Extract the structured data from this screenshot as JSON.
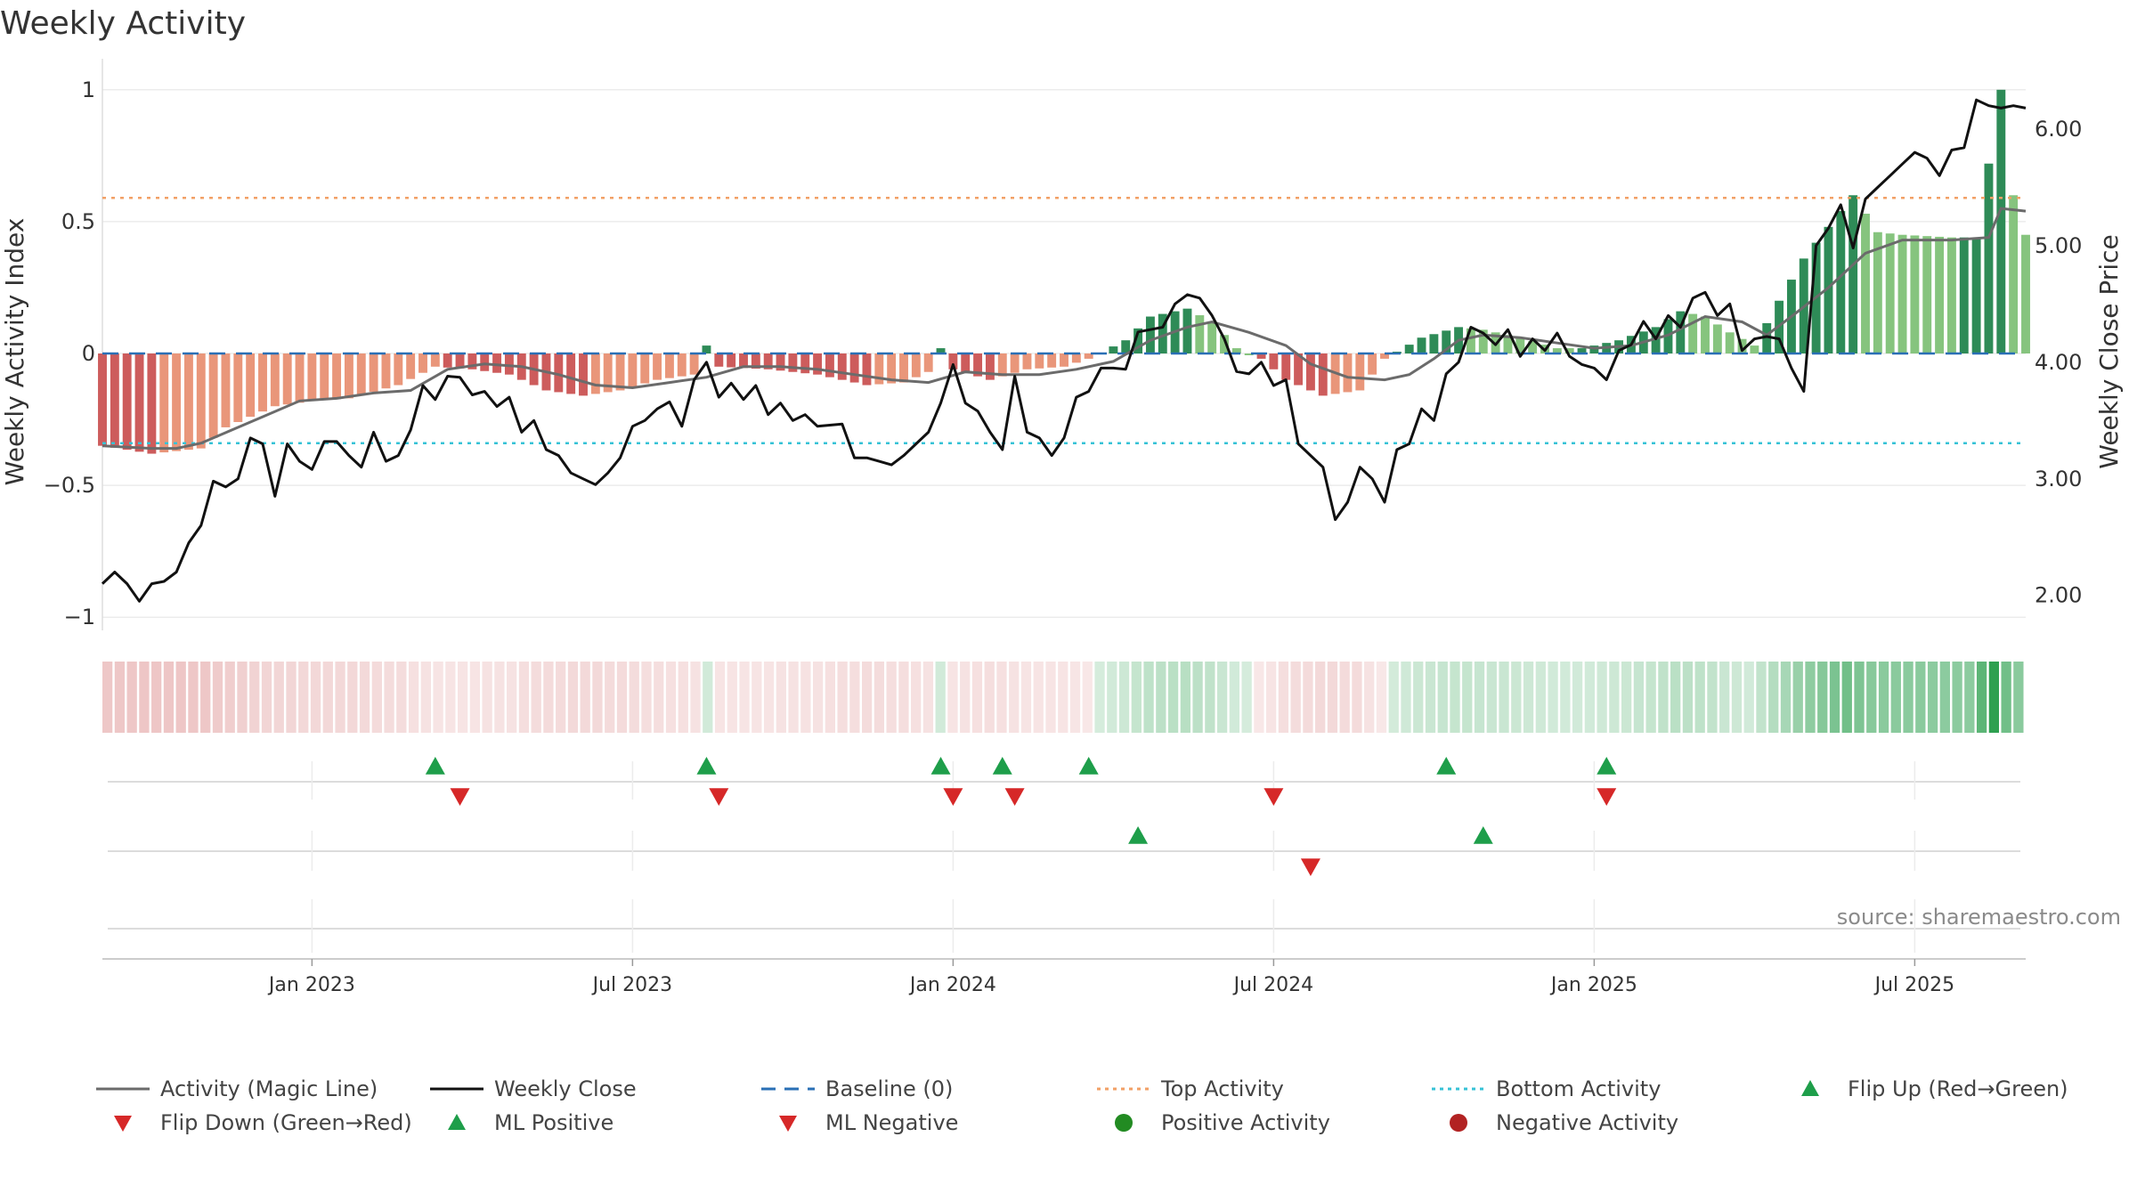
{
  "title": "Weekly Activity",
  "source_note": "source: sharemaestro.com",
  "colors": {
    "magic_line": "#6b6b6b",
    "close": "#111111",
    "baseline": "#2a6fb5",
    "top_activity": "#f2a066",
    "bottom_activity": "#36c2d6",
    "green_dark": "#2e8b57",
    "green_light": "#86c47e",
    "red_dark": "#cd5c5c",
    "red_light": "#e9967a",
    "flip_up": "#1e9e4a",
    "flip_down": "#d62828",
    "positive_dot": "#228b22",
    "negative_dot": "#b22222"
  },
  "chart_data": {
    "type": "bar+line",
    "title": "Weekly Activity",
    "ylabel_left": "Weekly Activity Index",
    "ylabel_right": "Weekly Close Price",
    "ylim_left": [
      -1.05,
      1.05
    ],
    "ylim_right": [
      1.7,
      6.45
    ],
    "left_ticks": [
      {
        "v": 1,
        "label": "1"
      },
      {
        "v": 0.5,
        "label": "0.5"
      },
      {
        "v": 0,
        "label": "0"
      },
      {
        "v": -0.5,
        "label": "−0.5"
      },
      {
        "v": -1,
        "label": "−1"
      }
    ],
    "right_ticks": [
      {
        "v": 6,
        "label": "6.00"
      },
      {
        "v": 5,
        "label": "5.00"
      },
      {
        "v": 4,
        "label": "4.00"
      },
      {
        "v": 3,
        "label": "3.00"
      },
      {
        "v": 2,
        "label": "2.00"
      }
    ],
    "x_range_weeks": [
      0,
      156
    ],
    "x_ticks": [
      {
        "week": 17,
        "label": "Jan 2023"
      },
      {
        "week": 43,
        "label": "Jul 2023"
      },
      {
        "week": 69,
        "label": "Jan 2024"
      },
      {
        "week": 95,
        "label": "Jul 2024"
      },
      {
        "week": 121,
        "label": "Jan 2025"
      },
      {
        "week": 147,
        "label": "Jul 2025"
      }
    ],
    "top_activity": 0.59,
    "bottom_activity": -0.34,
    "baseline": 0,
    "keypoints": {
      "activity": [
        [
          0,
          -0.35
        ],
        [
          4,
          -0.38
        ],
        [
          8,
          -0.36
        ],
        [
          10,
          -0.28
        ],
        [
          14,
          -0.2
        ],
        [
          17,
          -0.18
        ],
        [
          20,
          -0.17
        ],
        [
          24,
          -0.12
        ],
        [
          27,
          -0.05
        ],
        [
          30,
          -0.06
        ],
        [
          33,
          -0.08
        ],
        [
          36,
          -0.14
        ],
        [
          39,
          -0.16
        ],
        [
          42,
          -0.14
        ],
        [
          45,
          -0.1
        ],
        [
          48,
          -0.08
        ],
        [
          49,
          0.03
        ],
        [
          50,
          -0.05
        ],
        [
          54,
          -0.06
        ],
        [
          58,
          -0.08
        ],
        [
          62,
          -0.12
        ],
        [
          65,
          -0.11
        ],
        [
          67,
          -0.07
        ],
        [
          68,
          0.02
        ],
        [
          69,
          -0.06
        ],
        [
          72,
          -0.1
        ],
        [
          75,
          -0.06
        ],
        [
          78,
          -0.05
        ],
        [
          80,
          -0.02
        ],
        [
          83,
          0.05
        ],
        [
          85,
          0.14
        ],
        [
          88,
          0.17
        ],
        [
          90,
          0.12
        ],
        [
          92,
          0.02
        ],
        [
          94,
          -0.02
        ],
        [
          96,
          -0.1
        ],
        [
          99,
          -0.16
        ],
        [
          102,
          -0.14
        ],
        [
          104,
          -0.02
        ],
        [
          107,
          0.06
        ],
        [
          110,
          0.1
        ],
        [
          112,
          0.09
        ],
        [
          115,
          0.06
        ],
        [
          118,
          0.02
        ],
        [
          120,
          0.02
        ],
        [
          123,
          0.05
        ],
        [
          126,
          0.1
        ],
        [
          128,
          0.16
        ],
        [
          130,
          0.14
        ],
        [
          132,
          0.08
        ],
        [
          134,
          0.03
        ],
        [
          136,
          0.2
        ],
        [
          138,
          0.36
        ],
        [
          140,
          0.48
        ],
        [
          142,
          0.6
        ],
        [
          144,
          0.46
        ],
        [
          146,
          0.45
        ],
        [
          150,
          0.44
        ],
        [
          152,
          0.44
        ],
        [
          154,
          1.0
        ],
        [
          155,
          0.6
        ],
        [
          156,
          0.45
        ]
      ],
      "magic_line": [
        [
          0,
          -0.35
        ],
        [
          4,
          -0.36
        ],
        [
          6,
          -0.36
        ],
        [
          8,
          -0.34
        ],
        [
          10,
          -0.3
        ],
        [
          13,
          -0.24
        ],
        [
          16,
          -0.18
        ],
        [
          19,
          -0.17
        ],
        [
          22,
          -0.15
        ],
        [
          25,
          -0.14
        ],
        [
          28,
          -0.06
        ],
        [
          31,
          -0.04
        ],
        [
          34,
          -0.05
        ],
        [
          37,
          -0.08
        ],
        [
          40,
          -0.12
        ],
        [
          43,
          -0.13
        ],
        [
          46,
          -0.11
        ],
        [
          49,
          -0.09
        ],
        [
          52,
          -0.05
        ],
        [
          55,
          -0.05
        ],
        [
          58,
          -0.06
        ],
        [
          61,
          -0.08
        ],
        [
          64,
          -0.1
        ],
        [
          67,
          -0.11
        ],
        [
          70,
          -0.07
        ],
        [
          73,
          -0.08
        ],
        [
          76,
          -0.08
        ],
        [
          79,
          -0.06
        ],
        [
          82,
          -0.03
        ],
        [
          85,
          0.05
        ],
        [
          88,
          0.1
        ],
        [
          90,
          0.12
        ],
        [
          93,
          0.08
        ],
        [
          96,
          0.03
        ],
        [
          98,
          -0.04
        ],
        [
          101,
          -0.09
        ],
        [
          104,
          -0.1
        ],
        [
          106,
          -0.08
        ],
        [
          108,
          -0.02
        ],
        [
          110,
          0.05
        ],
        [
          112,
          0.07
        ],
        [
          115,
          0.06
        ],
        [
          118,
          0.04
        ],
        [
          121,
          0.02
        ],
        [
          124,
          0.03
        ],
        [
          127,
          0.07
        ],
        [
          130,
          0.14
        ],
        [
          133,
          0.12
        ],
        [
          135,
          0.07
        ],
        [
          137,
          0.14
        ],
        [
          140,
          0.25
        ],
        [
          143,
          0.38
        ],
        [
          146,
          0.43
        ],
        [
          150,
          0.43
        ],
        [
          153,
          0.44
        ],
        [
          154,
          0.55
        ],
        [
          156,
          0.54
        ]
      ],
      "close": [
        [
          0,
          2.1
        ],
        [
          1,
          2.2
        ],
        [
          2,
          2.1
        ],
        [
          3,
          1.95
        ],
        [
          4,
          2.1
        ],
        [
          5,
          2.12
        ],
        [
          6,
          2.2
        ],
        [
          7,
          2.45
        ],
        [
          8,
          2.6
        ],
        [
          9,
          2.98
        ],
        [
          10,
          2.93
        ],
        [
          11,
          3.0
        ],
        [
          12,
          3.35
        ],
        [
          13,
          3.3
        ],
        [
          14,
          2.85
        ],
        [
          15,
          3.3
        ],
        [
          16,
          3.15
        ],
        [
          17,
          3.08
        ],
        [
          18,
          3.32
        ],
        [
          19,
          3.32
        ],
        [
          20,
          3.2
        ],
        [
          21,
          3.1
        ],
        [
          22,
          3.4
        ],
        [
          23,
          3.15
        ],
        [
          24,
          3.2
        ],
        [
          25,
          3.42
        ],
        [
          26,
          3.8
        ],
        [
          27,
          3.68
        ],
        [
          28,
          3.88
        ],
        [
          29,
          3.87
        ],
        [
          30,
          3.72
        ],
        [
          31,
          3.75
        ],
        [
          32,
          3.62
        ],
        [
          33,
          3.7
        ],
        [
          34,
          3.4
        ],
        [
          35,
          3.5
        ],
        [
          36,
          3.25
        ],
        [
          37,
          3.2
        ],
        [
          38,
          3.05
        ],
        [
          39,
          3.0
        ],
        [
          40,
          2.95
        ],
        [
          41,
          3.05
        ],
        [
          42,
          3.18
        ],
        [
          43,
          3.45
        ],
        [
          44,
          3.5
        ],
        [
          45,
          3.6
        ],
        [
          46,
          3.66
        ],
        [
          47,
          3.45
        ],
        [
          48,
          3.85
        ],
        [
          49,
          4.0
        ],
        [
          50,
          3.7
        ],
        [
          51,
          3.82
        ],
        [
          52,
          3.68
        ],
        [
          53,
          3.8
        ],
        [
          54,
          3.55
        ],
        [
          55,
          3.65
        ],
        [
          56,
          3.5
        ],
        [
          57,
          3.55
        ],
        [
          58,
          3.45
        ],
        [
          59,
          3.46
        ],
        [
          60,
          3.47
        ],
        [
          61,
          3.18
        ],
        [
          62,
          3.18
        ],
        [
          63,
          3.15
        ],
        [
          64,
          3.12
        ],
        [
          65,
          3.2
        ],
        [
          66,
          3.3
        ],
        [
          67,
          3.4
        ],
        [
          68,
          3.65
        ],
        [
          69,
          3.98
        ],
        [
          70,
          3.65
        ],
        [
          71,
          3.58
        ],
        [
          72,
          3.4
        ],
        [
          73,
          3.25
        ],
        [
          74,
          3.88
        ],
        [
          75,
          3.4
        ],
        [
          76,
          3.35
        ],
        [
          77,
          3.2
        ],
        [
          78,
          3.35
        ],
        [
          79,
          3.7
        ],
        [
          80,
          3.75
        ],
        [
          81,
          3.95
        ],
        [
          82,
          3.95
        ],
        [
          83,
          3.94
        ],
        [
          84,
          4.26
        ],
        [
          85,
          4.28
        ],
        [
          86,
          4.3
        ],
        [
          87,
          4.5
        ],
        [
          88,
          4.58
        ],
        [
          89,
          4.55
        ],
        [
          90,
          4.4
        ],
        [
          91,
          4.2
        ],
        [
          92,
          3.92
        ],
        [
          93,
          3.9
        ],
        [
          94,
          4.0
        ],
        [
          95,
          3.8
        ],
        [
          96,
          3.85
        ],
        [
          97,
          3.3
        ],
        [
          98,
          3.2
        ],
        [
          99,
          3.1
        ],
        [
          100,
          2.65
        ],
        [
          101,
          2.8
        ],
        [
          102,
          3.1
        ],
        [
          103,
          3.0
        ],
        [
          104,
          2.8
        ],
        [
          105,
          3.25
        ],
        [
          106,
          3.3
        ],
        [
          107,
          3.6
        ],
        [
          108,
          3.5
        ],
        [
          109,
          3.9
        ],
        [
          110,
          4.0
        ],
        [
          111,
          4.3
        ],
        [
          112,
          4.25
        ],
        [
          113,
          4.15
        ],
        [
          114,
          4.28
        ],
        [
          115,
          4.05
        ],
        [
          116,
          4.2
        ],
        [
          117,
          4.1
        ],
        [
          118,
          4.25
        ],
        [
          119,
          4.05
        ],
        [
          120,
          3.98
        ],
        [
          121,
          3.95
        ],
        [
          122,
          3.85
        ],
        [
          123,
          4.1
        ],
        [
          124,
          4.15
        ],
        [
          125,
          4.35
        ],
        [
          126,
          4.2
        ],
        [
          127,
          4.4
        ],
        [
          128,
          4.3
        ],
        [
          129,
          4.55
        ],
        [
          130,
          4.6
        ],
        [
          131,
          4.4
        ],
        [
          132,
          4.5
        ],
        [
          133,
          4.1
        ],
        [
          134,
          4.2
        ],
        [
          135,
          4.22
        ],
        [
          136,
          4.2
        ],
        [
          137,
          3.95
        ],
        [
          138,
          3.75
        ],
        [
          139,
          5.0
        ],
        [
          140,
          5.15
        ],
        [
          141,
          5.35
        ],
        [
          142,
          4.98
        ],
        [
          143,
          5.4
        ],
        [
          144,
          5.5
        ],
        [
          145,
          5.6
        ],
        [
          146,
          5.7
        ],
        [
          147,
          5.8
        ],
        [
          148,
          5.75
        ],
        [
          149,
          5.6
        ],
        [
          150,
          5.82
        ],
        [
          151,
          5.84
        ],
        [
          152,
          6.25
        ],
        [
          153,
          6.2
        ],
        [
          154,
          6.18
        ],
        [
          155,
          6.2
        ],
        [
          156,
          6.18
        ]
      ]
    },
    "flip_up_weeks": [
      27,
      49,
      68,
      73,
      80,
      109,
      122
    ],
    "flip_down_weeks": [
      29,
      50,
      69,
      74,
      95,
      122
    ],
    "ml_positive_weeks": [
      84,
      112
    ],
    "ml_negative_weeks": [
      98
    ]
  },
  "legend": [
    {
      "label": "Activity (Magic Line)",
      "kind": "line"
    },
    {
      "label": "Weekly Close",
      "kind": "line"
    },
    {
      "label": "Baseline (0)",
      "kind": "dash"
    },
    {
      "label": "Top Activity",
      "kind": "dot-line"
    },
    {
      "label": "Bottom Activity",
      "kind": "dot-line"
    },
    {
      "label": "Flip Up (Red→Green)",
      "kind": "tri-up"
    },
    {
      "label": "Flip Down (Green→Red)",
      "kind": "tri-down"
    },
    {
      "label": "ML Positive",
      "kind": "tri-up"
    },
    {
      "label": "ML Negative",
      "kind": "tri-down"
    },
    {
      "label": "Positive Activity",
      "kind": "circle"
    },
    {
      "label": "Negative Activity",
      "kind": "circle"
    }
  ]
}
